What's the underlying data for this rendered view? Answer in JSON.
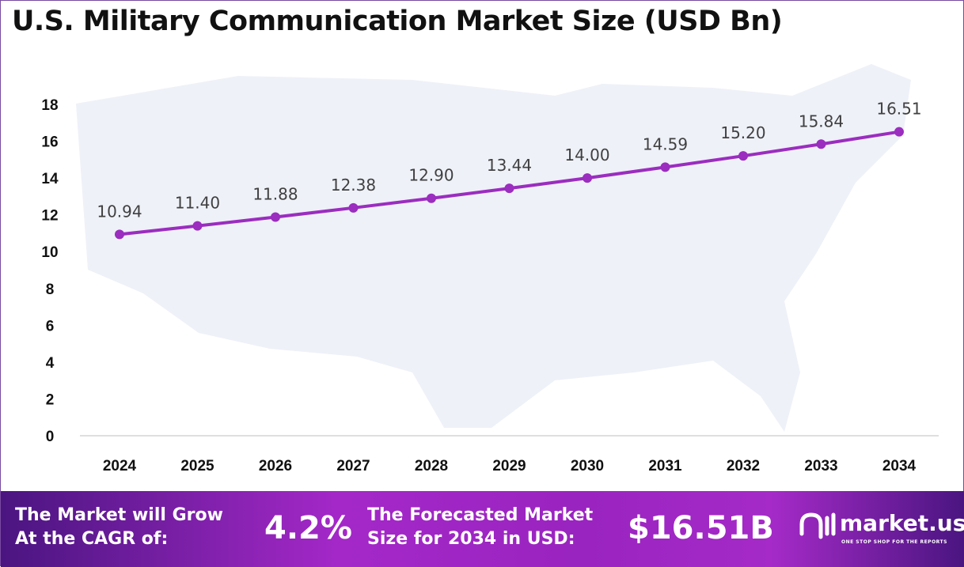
{
  "chart_data": {
    "type": "line",
    "title": "U.S. Military Communication Market Size (USD Bn)",
    "categories": [
      "2024",
      "2025",
      "2026",
      "2027",
      "2028",
      "2029",
      "2030",
      "2031",
      "2032",
      "2033",
      "2034"
    ],
    "values": [
      10.94,
      11.4,
      11.88,
      12.38,
      12.9,
      13.44,
      14.0,
      14.59,
      15.2,
      15.84,
      16.51
    ],
    "y_ticks": [
      0,
      2,
      4,
      6,
      8,
      10,
      12,
      14,
      16,
      18
    ],
    "ylim": [
      0,
      18
    ],
    "grid": false,
    "line_color": "#9b2dbf",
    "data_labels": true
  },
  "footer": {
    "cagr_label_1": "The Market will Grow",
    "cagr_label_2": "At the CAGR of:",
    "cagr_value": "4.2%",
    "forecast_label_1": "The Forecasted Market",
    "forecast_label_2": "Size for 2034 in USD:",
    "forecast_value": "$16.51B",
    "logo_name": "market.us",
    "logo_tagline": "ONE STOP SHOP FOR THE REPORTS"
  }
}
